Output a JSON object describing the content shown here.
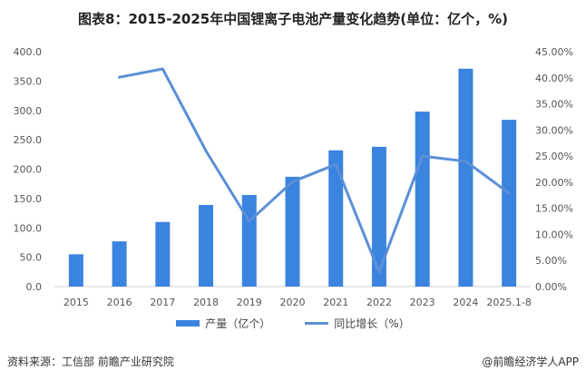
{
  "title": "图表8：2015-2025年中国锂离子电池产量变化趋势(单位：亿个，%)",
  "chart_data": {
    "type": "bar+line",
    "categories": [
      "2015",
      "2016",
      "2017",
      "2018",
      "2019",
      "2020",
      "2021",
      "2022",
      "2023",
      "2024",
      "2025.1-8"
    ],
    "series": [
      {
        "name": "产量（亿个）",
        "type": "bar",
        "axis": "left",
        "color": "#3a84e0",
        "values": [
          55,
          77,
          110,
          139,
          156,
          187,
          232,
          238,
          298,
          371,
          284
        ]
      },
      {
        "name": "同比增长（%）",
        "type": "line",
        "axis": "right",
        "color": "#5b8fd8",
        "values": [
          null,
          40.1,
          41.7,
          26.0,
          12.5,
          20.1,
          23.4,
          2.8,
          25.0,
          24.0,
          17.9
        ]
      }
    ],
    "left_axis": {
      "ylim": [
        0,
        400
      ],
      "ticks": [
        "0.0",
        "50.0",
        "100.0",
        "150.0",
        "200.0",
        "250.0",
        "300.0",
        "350.0",
        "400.0"
      ]
    },
    "right_axis": {
      "ylim": [
        0,
        45
      ],
      "ticks": [
        "0.00%",
        "5.00%",
        "10.00%",
        "15.00%",
        "20.00%",
        "25.00%",
        "30.00%",
        "35.00%",
        "40.00%",
        "45.00%"
      ]
    },
    "grid": false,
    "legend_position": "bottom"
  },
  "footer": {
    "source": "资料来源：工信部 前瞻产业研究院",
    "brand": "@前瞻经济学人APP"
  }
}
